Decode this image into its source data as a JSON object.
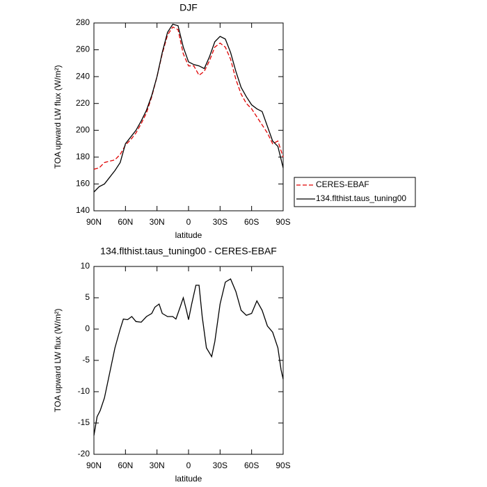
{
  "chart_data": [
    {
      "type": "line",
      "title": "DJF",
      "x_label": "latitude",
      "y_label": "TOA upward LW flux (W/m²)",
      "x": [
        90,
        85,
        80,
        75,
        70,
        65,
        60,
        55,
        50,
        45,
        40,
        35,
        30,
        25,
        20,
        15,
        10,
        5,
        0,
        -5,
        -10,
        -15,
        -20,
        -25,
        -30,
        -35,
        -40,
        -45,
        -50,
        -55,
        -60,
        -65,
        -70,
        -75,
        -80,
        -85,
        -90
      ],
      "series": [
        {
          "name": "CERES-EBAF",
          "color": "#e00000",
          "style": "dashed",
          "values": [
            171,
            172,
            176,
            177,
            178,
            182,
            189,
            193,
            198,
            205,
            213,
            225,
            240,
            257,
            271,
            277,
            275,
            257,
            248,
            248,
            241,
            244,
            252,
            262,
            265,
            262,
            253,
            238,
            227,
            220,
            216,
            210,
            204,
            198,
            190,
            192,
            180
          ]
        },
        {
          "name": "134.flthist.taus_tuning00",
          "color": "#000000",
          "style": "solid",
          "values": [
            154,
            158,
            160,
            165,
            170,
            176,
            190,
            195,
            200,
            207,
            215,
            226,
            240,
            258,
            273,
            279,
            278,
            262,
            251,
            249,
            248,
            246,
            255,
            266,
            270,
            268,
            258,
            244,
            232,
            225,
            219,
            216,
            214,
            203,
            192,
            188,
            172
          ]
        }
      ],
      "xlim": [
        90,
        -90
      ],
      "xticks": [
        {
          "value": 90,
          "label": "90N"
        },
        {
          "value": 60,
          "label": "60N"
        },
        {
          "value": 30,
          "label": "30N"
        },
        0,
        {
          "value": -30,
          "label": "30S"
        },
        {
          "value": -60,
          "label": "60S"
        },
        {
          "value": -90,
          "label": "90S"
        }
      ],
      "ylim": [
        140,
        280
      ],
      "yticks": [
        140,
        160,
        180,
        200,
        220,
        240,
        260,
        280
      ],
      "grid": false,
      "legend": "right"
    },
    {
      "type": "line",
      "title": "134.flthist.taus_tuning00 - CERES-EBAF",
      "x_label": "latitude",
      "y_label": "TOA upward LW flux (W/m²)",
      "x": [
        90,
        87,
        84,
        80,
        75,
        70,
        65,
        62,
        58,
        54,
        50,
        45,
        40,
        35,
        32,
        28,
        25,
        20,
        15,
        12,
        8,
        5,
        2,
        0,
        -3,
        -7,
        -10,
        -13,
        -17,
        -22,
        -25,
        -30,
        -35,
        -40,
        -45,
        -50,
        -55,
        -60,
        -65,
        -70,
        -75,
        -80,
        -85,
        -88,
        -90
      ],
      "series": [
        {
          "name": "134.flthist.taus_tuning00 - CERES-EBAF",
          "color": "#000000",
          "style": "solid",
          "values": [
            -17,
            -14,
            -13,
            -11,
            -7,
            -3,
            0,
            1.6,
            1.5,
            2,
            1.2,
            1.1,
            2,
            2.5,
            3.5,
            4,
            2.5,
            2,
            2,
            1.6,
            3.5,
            5,
            3,
            1.5,
            4,
            7,
            7,
            2,
            -3,
            -4.4,
            -2,
            4,
            7.5,
            8,
            6,
            3,
            2.2,
            2.5,
            4.5,
            3,
            0.5,
            -0.5,
            -3,
            -6.5,
            -8
          ]
        }
      ],
      "xlim": [
        90,
        -90
      ],
      "xticks": [
        {
          "value": 90,
          "label": "90N"
        },
        {
          "value": 60,
          "label": "60N"
        },
        {
          "value": 30,
          "label": "30N"
        },
        0,
        {
          "value": -30,
          "label": "30S"
        },
        {
          "value": -60,
          "label": "60S"
        },
        {
          "value": -90,
          "label": "90S"
        }
      ],
      "ylim": [
        -20,
        10
      ],
      "yticks": [
        -20,
        -15,
        -10,
        -5,
        0,
        5,
        10
      ],
      "grid": false,
      "legend": "none"
    }
  ]
}
